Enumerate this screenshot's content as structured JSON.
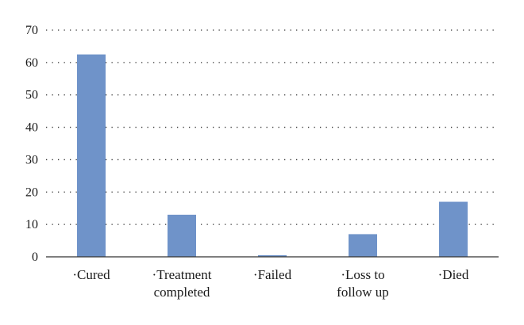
{
  "chart_data": {
    "type": "bar",
    "categories": [
      "·Cured",
      "·Treatment completed",
      "·Failed",
      "·Loss to follow up",
      "·Died"
    ],
    "category_lines": [
      [
        "·Cured"
      ],
      [
        "·Treatment",
        "completed"
      ],
      [
        "·Failed"
      ],
      [
        "·Loss to",
        "follow up"
      ],
      [
        "·Died"
      ]
    ],
    "values": [
      62.5,
      13,
      0.5,
      7,
      17
    ],
    "title": "",
    "xlabel": "",
    "ylabel": "",
    "ylim": [
      0,
      70
    ],
    "yticks": [
      0,
      10,
      20,
      30,
      40,
      50,
      60,
      70
    ],
    "grid": true,
    "bar_color": "#6f93c9"
  }
}
